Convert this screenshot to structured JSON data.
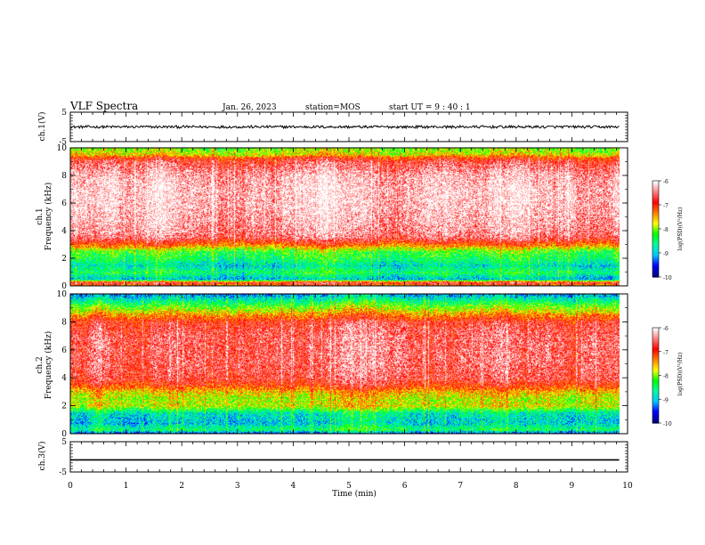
{
  "header": {
    "title": "VLF Spectra",
    "date": "Jan. 26, 2023",
    "station": "station=MOS",
    "start_ut": "start UT =  9 : 40 : 1"
  },
  "panels": {
    "ch1_voltage": {
      "ylabel": "ch.1(V)",
      "ylim": [
        -5,
        5
      ],
      "yticks": [
        "5",
        "-5"
      ],
      "trace_level": 0
    },
    "ch1_spectrogram": {
      "channel": "ch.1",
      "ylabel": "Frequency (kHz)",
      "ylim": [
        0,
        10
      ],
      "yticks": [
        "0",
        "2",
        "4",
        "6",
        "8",
        "10"
      ],
      "colorbar_label": "log(PSD)(V²/Hz)",
      "colorbar_ticks": [
        "-6",
        "-7",
        "-8",
        "-9",
        "-10"
      ]
    },
    "ch2_spectrogram": {
      "channel": "ch.2",
      "ylabel": "Frequency (kHz)",
      "ylim": [
        0,
        10
      ],
      "yticks": [
        "0",
        "2",
        "4",
        "6",
        "8",
        "10"
      ],
      "colorbar_label": "log(PSD)(V²/Hz)",
      "colorbar_ticks": [
        "-6",
        "-7",
        "-8",
        "-9",
        "-10"
      ]
    },
    "ch3_voltage": {
      "ylabel": "ch.3(V)",
      "ylim": [
        -5,
        5
      ],
      "yticks": [
        "5",
        "-5"
      ],
      "trace_level": -1
    }
  },
  "colors": {
    "colormap": [
      "#000080",
      "#0000ff",
      "#00c8ff",
      "#00ffa0",
      "#00ff00",
      "#ffff00",
      "#ff8000",
      "#ff0000",
      "#ff8080",
      "#ffffff"
    ]
  },
  "chart_data": {
    "type": "heatmap",
    "xlabel": "Time (min)",
    "xlim": [
      0,
      10
    ],
    "xticks": [
      "0",
      "1",
      "2",
      "3",
      "4",
      "5",
      "6",
      "7",
      "8",
      "9",
      "10"
    ],
    "data_end_min": 9.85,
    "clim": [
      -10,
      -6
    ],
    "ch1_psd_profile": {
      "freq_khz": [
        0,
        0.25,
        0.5,
        1,
        1.5,
        2,
        2.5,
        3,
        3.5,
        4,
        5,
        6,
        7,
        8,
        8.5,
        9,
        9.3,
        9.5,
        9.8,
        10
      ],
      "log_psd": [
        -7.5,
        -6.6,
        -9.0,
        -8.4,
        -8.8,
        -8.4,
        -8.2,
        -7.2,
        -6.5,
        -6.3,
        -6.2,
        -6.1,
        -6.1,
        -6.2,
        -6.4,
        -6.6,
        -7.0,
        -7.6,
        -7.9,
        -8.0
      ]
    },
    "ch2_psd_profile": {
      "freq_khz": [
        0,
        0.3,
        0.8,
        1.5,
        2,
        2.5,
        3,
        3.5,
        4,
        5,
        6,
        7,
        8,
        8.5,
        9,
        9.5,
        10
      ],
      "log_psd": [
        -9.6,
        -8.5,
        -9.0,
        -8.8,
        -7.8,
        -7.9,
        -7.6,
        -7.0,
        -6.7,
        -6.6,
        -6.6,
        -6.6,
        -6.8,
        -7.4,
        -8.0,
        -8.6,
        -9.2
      ]
    }
  }
}
